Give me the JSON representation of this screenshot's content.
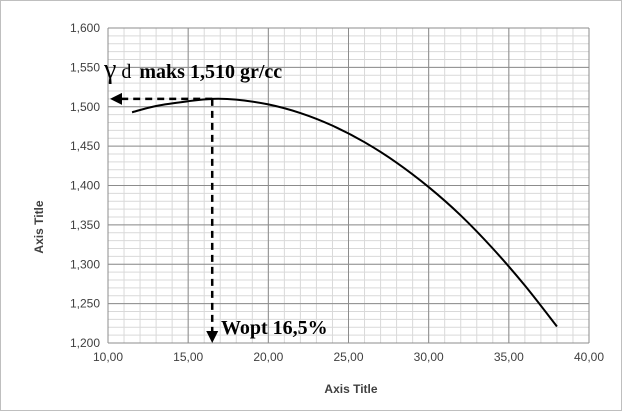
{
  "chart_data": {
    "type": "line",
    "title": "",
    "xlabel": "Axis Title",
    "ylabel": "Axis Title",
    "xlim": [
      10,
      40
    ],
    "ylim": [
      1200,
      1600
    ],
    "x_ticks": [
      "10,00",
      "15,00",
      "20,00",
      "25,00",
      "30,00",
      "35,00",
      "40,00"
    ],
    "y_ticks": [
      "1,200",
      "1,250",
      "1,300",
      "1,350",
      "1,400",
      "1,450",
      "1,500",
      "1,550",
      "1,600"
    ],
    "grid": true,
    "legend": "none",
    "series": [
      {
        "x": [
          11.5,
          13,
          15,
          16.5,
          18,
          20,
          22,
          24,
          26,
          28,
          30,
          32,
          34,
          36,
          38
        ],
        "y": [
          1493,
          1501,
          1507,
          1510,
          1509,
          1503,
          1492,
          1476,
          1455,
          1429,
          1398,
          1362,
          1320,
          1273,
          1221
        ],
        "color": "#000000"
      }
    ],
    "annotations": {
      "max_symbol": "γ",
      "max_subscript": "d",
      "max_text": "maks 1,510 gr/cc",
      "opt_text": "Wopt 16,5%",
      "opt_x": 16.5,
      "max_y": 1510
    }
  }
}
